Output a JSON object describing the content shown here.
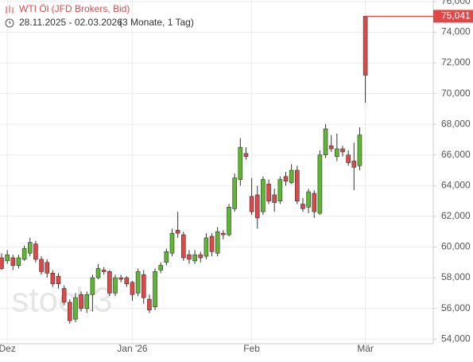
{
  "header": {
    "title": "WTI Öl (JFD Brokers, Bid)",
    "range": "28.11.2025 - 02.03.2026",
    "period": "(3 Monate, 1 Tag)"
  },
  "chart_data": {
    "type": "candlestick",
    "watermark": "stock3",
    "categories": [
      null,
      "Dez",
      null,
      null,
      null,
      null,
      null,
      null,
      null,
      null,
      null,
      null,
      null,
      null,
      null,
      null,
      null,
      null,
      null,
      null,
      null,
      null,
      null,
      "Jan '26",
      null,
      null,
      null,
      null,
      null,
      null,
      null,
      null,
      null,
      null,
      null,
      null,
      null,
      null,
      null,
      null,
      null,
      null,
      null,
      null,
      "Feb",
      null,
      null,
      null,
      null,
      null,
      null,
      null,
      null,
      null,
      null,
      null,
      null,
      null,
      null,
      null,
      null,
      null,
      null,
      null,
      "Mär"
    ],
    "open": [
      59300,
      59100,
      59300,
      58800,
      59200,
      59600,
      60200,
      59200,
      59000,
      58300,
      58100,
      57300,
      56400,
      55300,
      56900,
      56000,
      56900,
      58000,
      58500,
      58400,
      57000,
      58000,
      58000,
      57700,
      57000,
      58200,
      56600,
      56100,
      58500,
      59000,
      59600,
      61100,
      60800,
      59500,
      59100,
      59500,
      59400,
      60700,
      59600,
      60900,
      60800,
      62500,
      64400,
      66100,
      63300,
      63400,
      62300,
      64100,
      63400,
      63000,
      64600,
      64200,
      65000,
      62800,
      62600,
      63500,
      62200,
      66000,
      66600,
      65900,
      66400,
      66000,
      65600,
      65300,
      75041
    ],
    "high": [
      59600,
      59800,
      59500,
      59500,
      60100,
      60600,
      60400,
      59400,
      59200,
      58500,
      58300,
      57500,
      56600,
      57000,
      57100,
      57100,
      58200,
      58900,
      58700,
      58500,
      58200,
      58200,
      58100,
      57800,
      58600,
      58500,
      56900,
      58600,
      59000,
      59900,
      61200,
      62300,
      61000,
      59800,
      59800,
      59700,
      60900,
      60900,
      61300,
      61100,
      62800,
      64800,
      67100,
      66500,
      64500,
      64000,
      64600,
      64400,
      63800,
      64600,
      64900,
      65400,
      65300,
      63200,
      63800,
      63700,
      66300,
      68000,
      67300,
      67400,
      66600,
      66300,
      66800,
      67800,
      75041
    ],
    "low": [
      58500,
      58900,
      58500,
      58600,
      59100,
      59400,
      59000,
      58200,
      58000,
      57400,
      57300,
      56200,
      55000,
      55100,
      55800,
      55700,
      55800,
      57900,
      58200,
      56800,
      56800,
      57700,
      57400,
      56500,
      56800,
      56300,
      55700,
      55900,
      58300,
      58800,
      59400,
      60600,
      59100,
      58900,
      58900,
      59000,
      59200,
      59400,
      59400,
      60500,
      60700,
      62300,
      64000,
      65700,
      62100,
      61200,
      62100,
      62800,
      62300,
      62800,
      64000,
      64100,
      62800,
      62300,
      62200,
      61900,
      62100,
      65800,
      66200,
      65600,
      65900,
      65300,
      63700,
      65000,
      69400
    ],
    "close": [
      58600,
      59500,
      58800,
      59300,
      59900,
      60300,
      59200,
      58400,
      58300,
      57600,
      57600,
      56400,
      55200,
      56700,
      56000,
      56900,
      58000,
      58600,
      58400,
      57000,
      58000,
      57900,
      57600,
      56900,
      58400,
      56700,
      55900,
      58400,
      58800,
      59700,
      60900,
      60900,
      59300,
      59200,
      59500,
      59300,
      60600,
      59700,
      61000,
      60800,
      62600,
      64500,
      66500,
      65900,
      62300,
      61900,
      64400,
      63000,
      62900,
      64400,
      64300,
      65000,
      63000,
      62500,
      63600,
      62300,
      66000,
      67700,
      66400,
      66400,
      66200,
      65500,
      65200,
      67300,
      71200
    ],
    "up_color": "#5cb82e",
    "down_color": "#e04848",
    "last_price": 75041,
    "last_price_label": "75,041",
    "ylim": [
      53700,
      76100
    ],
    "yticks": [
      {
        "value": 54000,
        "label": "54,000"
      },
      {
        "value": 56000,
        "label": "56,000"
      },
      {
        "value": 58000,
        "label": "58,000"
      },
      {
        "value": 60000,
        "label": "60,000"
      },
      {
        "value": 62000,
        "label": "62,000"
      },
      {
        "value": 64000,
        "label": "64,000"
      },
      {
        "value": 66000,
        "label": "66,000"
      },
      {
        "value": 68000,
        "label": "68,000"
      },
      {
        "value": 70000,
        "label": "70,000"
      },
      {
        "value": 72000,
        "label": "72,000"
      },
      {
        "value": 74000,
        "label": "74,000"
      },
      {
        "value": 76000,
        "label": "76,000"
      }
    ],
    "grid": true
  }
}
